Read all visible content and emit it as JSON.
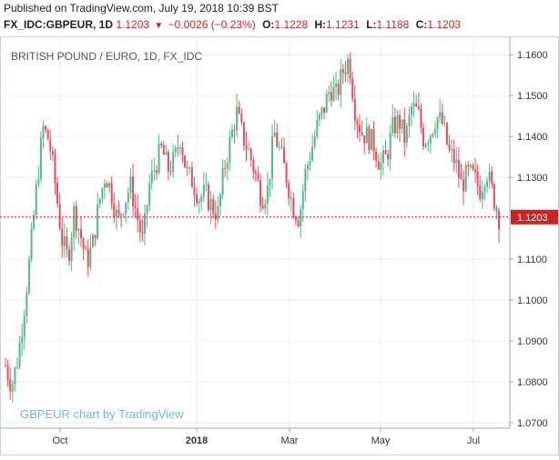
{
  "header": {
    "published": "Published on TradingView.com, July 19, 2018 10:39 BST",
    "symbol": "FX_IDC:GBPEUR, 1D",
    "last": "1.1203",
    "change": "−0.0026 (−0.23%)",
    "open_label": "O:",
    "open": "1.1228",
    "high_label": "H:",
    "high": "1.1231",
    "low_label": "L:",
    "low": "1.1188",
    "close_label": "C:",
    "close": "1.1203"
  },
  "chart_data": {
    "type": "candlestick",
    "title": "BRITISH POUND / EURO, 1D, FX_IDC",
    "watermark": "GBPEUR chart by TradingView",
    "y_ticks": [
      "1.1600",
      "1.1500",
      "1.1400",
      "1.1300",
      "1.1200",
      "1.1100",
      "1.1000",
      "1.0900",
      "1.0800",
      "1.0700"
    ],
    "x_ticks": [
      "Oct",
      "2018",
      "Mar",
      "May",
      "Jul"
    ],
    "ylim": [
      1.07,
      1.1645
    ],
    "last_price": "1.1203",
    "last_price_value": 1.1203,
    "grid": true,
    "colors": {
      "up": "#53b987",
      "down": "#eb4d5c",
      "last_line": "#cc2222",
      "grid": "#e8edf2"
    },
    "close_path": [
      1.084,
      1.079,
      1.086,
      1.098,
      1.112,
      1.128,
      1.142,
      1.139,
      1.128,
      1.115,
      1.11,
      1.122,
      1.116,
      1.109,
      1.114,
      1.124,
      1.131,
      1.126,
      1.119,
      1.124,
      1.128,
      1.121,
      1.114,
      1.128,
      1.133,
      1.137,
      1.132,
      1.134,
      1.14,
      1.131,
      1.129,
      1.125,
      1.126,
      1.123,
      1.121,
      1.132,
      1.139,
      1.146,
      1.14,
      1.136,
      1.131,
      1.125,
      1.127,
      1.141,
      1.136,
      1.13,
      1.123,
      1.12,
      1.131,
      1.137,
      1.143,
      1.147,
      1.152,
      1.15,
      1.156,
      1.159,
      1.146,
      1.141,
      1.14,
      1.138,
      1.133,
      1.135,
      1.142,
      1.144,
      1.139,
      1.147,
      1.146,
      1.139,
      1.141,
      1.145,
      1.143,
      1.136,
      1.134,
      1.128,
      1.131,
      1.13,
      1.127,
      1.132,
      1.126,
      1.1203
    ]
  }
}
